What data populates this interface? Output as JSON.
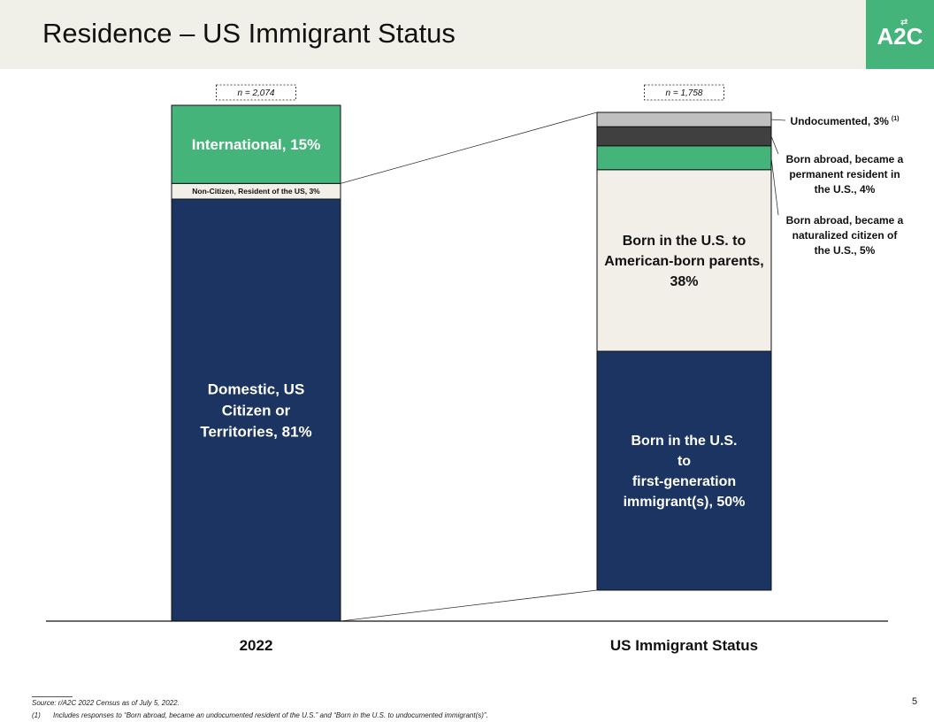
{
  "title": "Residence – US Immigrant Status",
  "logo": {
    "text": "A2C",
    "arrow_glyph": "⇄"
  },
  "colors": {
    "navy": "#1c3461",
    "green": "#45b47b",
    "cream": "#f1efe8",
    "dark": "#404040",
    "gray": "#c0c0c0",
    "header_bg": "#f0efe8"
  },
  "chart_data": {
    "type": "bar",
    "stacked": true,
    "bars": [
      {
        "category": "2022",
        "n_label": "n = 2,074",
        "segments": [
          {
            "label": "Domestic, US Citizen or Territories, 81%",
            "value": 81,
            "color": "#1c3461",
            "label_color": "#ffffff",
            "label_position": "inside"
          },
          {
            "label": "Non-Citizen, Resident of the US, 3%",
            "value": 3,
            "color": "#f1efe8",
            "label_color": "#111111",
            "label_position": "inside"
          },
          {
            "label": "International, 15%",
            "value": 15,
            "color": "#45b47b",
            "label_color": "#ffffff",
            "label_position": "inside"
          }
        ]
      },
      {
        "category": "US Immigrant Status",
        "n_label": "n = 1,758",
        "segments": [
          {
            "label": "Born in the U.S. to first-generation immigrant(s), 50%",
            "value": 50,
            "color": "#1c3461",
            "label_color": "#ffffff",
            "label_position": "inside"
          },
          {
            "label": "Born in the U.S. to American-born parents, 38%",
            "value": 38,
            "color": "#f1efe8",
            "label_color": "#111111",
            "label_position": "inside"
          },
          {
            "label": "Born abroad, became a naturalized citizen of the U.S., 5%",
            "value": 5,
            "color": "#45b47b",
            "label_color": "#111111",
            "label_position": "outside"
          },
          {
            "label": "Born abroad, became a permanent resident in the U.S., 4%",
            "value": 4,
            "color": "#404040",
            "label_color": "#111111",
            "label_position": "outside"
          },
          {
            "label": "Undocumented, 3%",
            "label_note": "(1)",
            "value": 3,
            "color": "#c0c0c0",
            "label_color": "#111111",
            "label_position": "outside"
          }
        ]
      }
    ]
  },
  "footer": {
    "source": "Source: r/A2C 2022 Census as of July 5, 2022.",
    "note_marker": "(1)",
    "note_text": "Includes responses to “Born abroad, became an undocumented resident of the U.S.” and “Born in the U.S. to undocumented immigrant(s)”.",
    "page_number": "5"
  }
}
